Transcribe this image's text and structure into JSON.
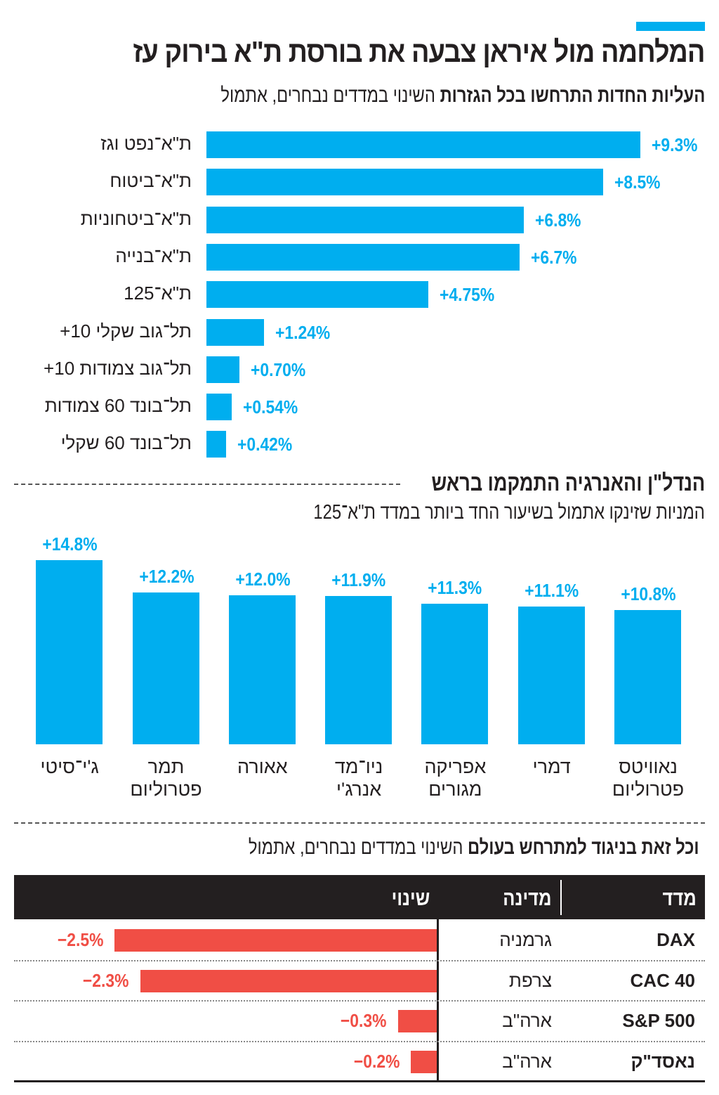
{
  "title": "המלחמה מול איראן צבעה את בורסת ת\"א בירוק עז",
  "colors": {
    "accent": "#00aeef",
    "negative": "#f04e45",
    "header": "#231f20"
  },
  "chart_data": [
    {
      "type": "bar",
      "orientation": "horizontal",
      "title_bold": "העליות החדות התרחשו בכל הגזרות",
      "subtitle": "השינוי במדדים נבחרים, אתמול",
      "categories": [
        "ת\"א־נפט וגז",
        "ת\"א־ביטוח",
        "ת\"א־ביטחוניות",
        "ת\"א־בנייה",
        "ת\"א־125",
        "תל־גוב שקלי 10+",
        "תל־גוב צמודות 10+",
        "תל־בונד 60 צמודות",
        "תל־בונד 60 שקלי"
      ],
      "values": [
        9.3,
        8.5,
        6.8,
        6.7,
        4.75,
        1.24,
        0.7,
        0.54,
        0.42
      ],
      "labels": [
        "+9.3%",
        "+8.5%",
        "+6.8%",
        "+6.7%",
        "+4.75%",
        "+1.24%",
        "+0.70%",
        "+0.54%",
        "+0.42%"
      ]
    },
    {
      "type": "bar",
      "orientation": "vertical",
      "title": "הנדל\"ן והאנרגיה התמקמו בראש",
      "subtitle": "המניות שזינקו אתמול בשיעור החד ביותר במדד ת\"א־125",
      "categories": [
        [
          "נאוויטס",
          "פטרוליום"
        ],
        [
          "דמרי",
          ""
        ],
        [
          "אפריקה",
          "מגורים"
        ],
        [
          "ניו־מד",
          "אנרג'י"
        ],
        [
          "אאורה",
          ""
        ],
        [
          "תמר",
          "פטרוליום"
        ],
        [
          "ג'י־סיטי",
          ""
        ]
      ],
      "values": [
        10.8,
        11.1,
        11.3,
        11.9,
        12.0,
        12.2,
        14.8
      ],
      "labels": [
        "+10.8%",
        "+11.1%",
        "+11.3%",
        "+11.9%",
        "+12.0%",
        "+12.2%",
        "+14.8%"
      ]
    },
    {
      "type": "table",
      "title_bold": "וכל זאת בניגוד למתרחש בעולם",
      "subtitle": "השינוי במדדים נבחרים, אתמול",
      "columns": [
        "מדד",
        "מדינה",
        "שינוי"
      ],
      "rows": [
        {
          "index": "DAX",
          "country": "גרמניה",
          "value": -2.5,
          "label": "−2.5%"
        },
        {
          "index": "CAC 40",
          "country": "צרפת",
          "value": -2.3,
          "label": "−2.3%"
        },
        {
          "index": "S&P 500",
          "country": "ארה\"ב",
          "value": -0.3,
          "label": "−0.3%"
        },
        {
          "index": "נאסד\"ק",
          "country": "ארה\"ב",
          "value": -0.2,
          "label": "−0.2%"
        }
      ]
    }
  ]
}
